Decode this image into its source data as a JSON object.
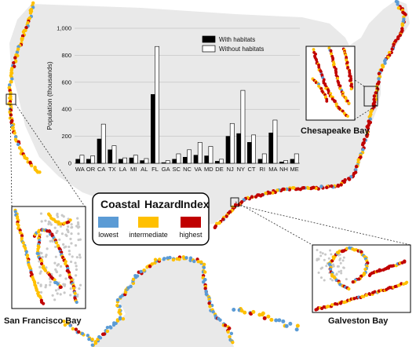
{
  "chart_data": {
    "type": "bar",
    "ylabel": "Population (thousands)",
    "ylim": [
      0,
      1000
    ],
    "yticks": [
      "0",
      "200",
      "400",
      "600",
      "800",
      "1,000"
    ],
    "categories": [
      "WA",
      "OR",
      "CA",
      "TX",
      "LA",
      "MI",
      "AL",
      "FL",
      "GA",
      "SC",
      "NC",
      "VA",
      "MD",
      "DE",
      "NJ",
      "NY",
      "CT",
      "RI",
      "MA",
      "NH",
      "ME"
    ],
    "series": [
      {
        "name": "With habitats",
        "color": "#000000",
        "values": [
          30,
          30,
          180,
          100,
          30,
          40,
          20,
          510,
          5,
          30,
          45,
          60,
          55,
          15,
          200,
          220,
          155,
          30,
          225,
          10,
          30
        ]
      },
      {
        "name": "Without habitats",
        "color": "#ffffff",
        "values": [
          60,
          55,
          290,
          130,
          40,
          60,
          35,
          865,
          20,
          70,
          100,
          155,
          125,
          30,
          295,
          540,
          210,
          70,
          320,
          20,
          70
        ]
      }
    ],
    "grid": true,
    "legend_position": "top-right"
  },
  "legend": {
    "title_words": [
      "Coastal",
      "Hazard",
      "Index"
    ],
    "items": [
      {
        "label": "lowest",
        "color": "#5b9bd5"
      },
      {
        "label": "intermediate",
        "color": "#ffc000"
      },
      {
        "label": "highest",
        "color": "#c00000"
      }
    ]
  },
  "insets": {
    "san_francisco": "San  Francisco Bay",
    "chesapeake": "Chesapeake Bay",
    "galveston": "Galveston Bay"
  },
  "colors": {
    "land": "#e9e9e9",
    "background": "#ffffff"
  }
}
